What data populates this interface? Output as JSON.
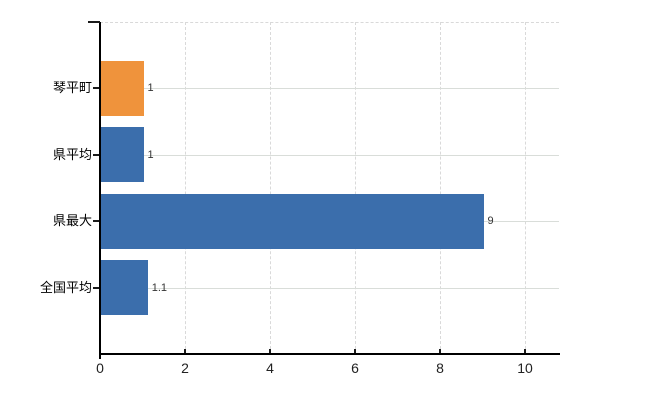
{
  "chart_data": {
    "type": "bar",
    "orientation": "horizontal",
    "categories": [
      "琴平町",
      "県平均",
      "県最大",
      "全国平均"
    ],
    "values": [
      1,
      1,
      9,
      1.1
    ],
    "value_labels": [
      "1",
      "1",
      "9",
      "1.1"
    ],
    "series": [
      {
        "name": "value",
        "values": [
          1,
          1,
          9,
          1.1
        ]
      }
    ],
    "bar_colors": [
      "#ef933c",
      "#3b6eac",
      "#3b6eac",
      "#3b6eac"
    ],
    "xlim": [
      0,
      10.8
    ],
    "xticks": [
      0,
      2,
      4,
      6,
      8,
      10
    ],
    "xtick_labels": [
      "0",
      "2",
      "4",
      "6",
      "8",
      "10"
    ],
    "grid": true,
    "legend": "none",
    "title": ""
  },
  "colors": {
    "accent_orange": "#ef933c",
    "accent_blue": "#3b6eac",
    "grid": "#d9d9d9",
    "axis": "#000000",
    "tick_label": "#222222",
    "value_label": "#333333",
    "background": "#ffffff"
  }
}
